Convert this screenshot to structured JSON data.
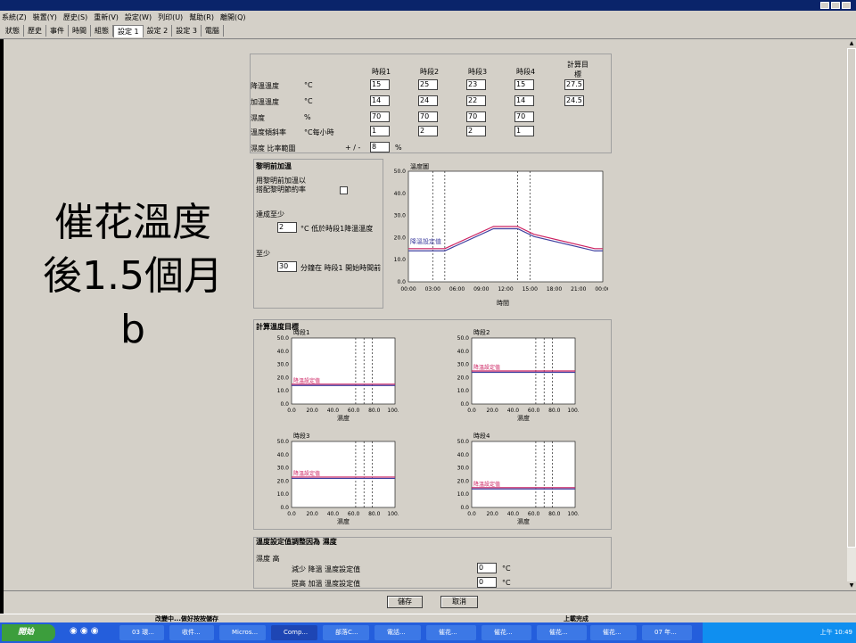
{
  "menu": [
    "系統(Z)",
    "裝置(Y)",
    "歷史(S)",
    "重新(V)",
    "設定(W)",
    "列印(U)",
    "幫助(R)",
    "離開(Q)"
  ],
  "tabs": [
    {
      "label": "狀態",
      "active": false
    },
    {
      "label": "歷史",
      "active": false
    },
    {
      "label": "事件",
      "active": false
    },
    {
      "label": "時間",
      "active": false
    },
    {
      "label": "組態",
      "active": false
    },
    {
      "label": "設定 1",
      "active": true
    },
    {
      "label": "設定 2",
      "active": false
    },
    {
      "label": "設定 3",
      "active": false
    },
    {
      "label": "電腦",
      "active": false
    }
  ],
  "overlay": {
    "line1": "催花溫度",
    "line2": "後1.5個月",
    "line3": "b"
  },
  "table": {
    "headers": [
      "時段1",
      "時段2",
      "時段3",
      "時段4",
      "計算目標"
    ],
    "rows": [
      {
        "label": "降溫溫度",
        "unit": "°C",
        "values": [
          "15",
          "25",
          "23",
          "15"
        ],
        "target": "27.5"
      },
      {
        "label": "加溫溫度",
        "unit": "°C",
        "values": [
          "14",
          "24",
          "22",
          "14"
        ],
        "target": "24.5"
      },
      {
        "label": "濕度",
        "unit": "%",
        "values": [
          "70",
          "70",
          "70",
          "70"
        ],
        "target": ""
      },
      {
        "label": "溫度傾斜率",
        "unit": "°C每小時",
        "values": [
          "1",
          "2",
          "2",
          "1"
        ],
        "target": ""
      }
    ],
    "ratio_label": "濕度 比率範圍",
    "ratio_prefix": "+ / -",
    "ratio_value": "8",
    "ratio_unit": "%"
  },
  "sunrise": {
    "title": "黎明前加溫",
    "line1": "用黎明前加溫以",
    "line2": "搭配黎明節約率",
    "reach_label": "達成至少",
    "reach_value": "2",
    "reach_text": "°C 低於時段1降溫溫度",
    "atleast_label": "至少",
    "atleast_value": "30",
    "atleast_text": "分鐘在 時段1 開始時間前"
  },
  "temp_chart": {
    "title": "溫度圖",
    "xlabel": "時間",
    "label": "降溫設定值",
    "yticks": [
      "50.0",
      "40.0",
      "30.0",
      "20.0",
      "10.0",
      "0.0"
    ],
    "xticks": [
      "00:00",
      "03:00",
      "06:00",
      "09:00",
      "12:00",
      "15:00",
      "18:00",
      "21:00",
      "00:00"
    ],
    "cool": [
      15,
      15,
      25,
      25,
      21.5,
      15,
      15
    ],
    "heat": [
      14,
      14,
      24,
      24,
      20.5,
      14,
      14
    ],
    "xhours": [
      0,
      4.5,
      10.5,
      13.5,
      15.5,
      23,
      24
    ],
    "vlines": [
      3,
      4.5,
      13.5,
      15
    ]
  },
  "targets": {
    "title": "計算溫度目標",
    "charts": [
      {
        "title": "時段1",
        "label": "降溫設定值",
        "xlabel": "濕度",
        "cool": 15,
        "heat": 14
      },
      {
        "title": "時段2",
        "label": "降溫設定值",
        "xlabel": "濕度",
        "cool": 25,
        "heat": 24
      },
      {
        "title": "時段3",
        "label": "降溫設定值",
        "xlabel": "濕度",
        "cool": 23,
        "heat": 22
      },
      {
        "title": "時段4",
        "label": "降溫設定值",
        "xlabel": "濕度",
        "cool": 15,
        "heat": 14
      }
    ],
    "yticks": [
      "50.0",
      "40.0",
      "30.0",
      "20.0",
      "10.0",
      "0.0"
    ],
    "xticks": [
      "0.0",
      "20.0",
      "40.0",
      "60.0",
      "80.0",
      "100.0"
    ],
    "vlines": [
      62,
      70,
      78
    ]
  },
  "bottom": {
    "title": "溫度設定值調整因為 濕度",
    "line1": "濕度 高",
    "row1": "減少 降溫 溫度設定值",
    "row1_value": "0",
    "row2": "提高 加溫 溫度設定值",
    "row2_value": "0",
    "unit": "°C"
  },
  "buttons": {
    "save": "儲存",
    "cancel": "取消"
  },
  "status": {
    "left": "改變中...做好按按儲存",
    "right": "上載完成"
  },
  "taskbar": {
    "start": "開始",
    "items": [
      "03 環...",
      "收件...",
      "Micros...",
      "Comp...",
      "部落C...",
      "電話...",
      "催花...",
      "催花...",
      "催花...",
      "催花...",
      "07 年..."
    ],
    "clock": "上午 10:49"
  },
  "colors": {
    "cool": "#cc2060",
    "heat": "#4040a0"
  }
}
